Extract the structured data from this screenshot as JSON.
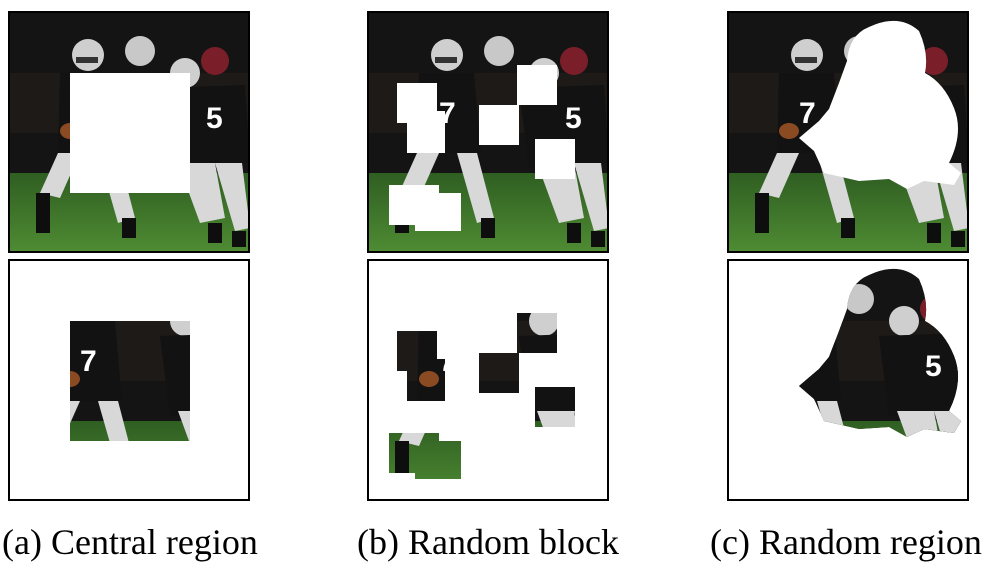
{
  "figure": {
    "panels": [
      {
        "letter": "(a)",
        "caption": "(a) Central region"
      },
      {
        "letter": "(b)",
        "caption": "(b) Random block"
      },
      {
        "letter": "(c)",
        "caption": "(c) Random region"
      }
    ],
    "colors": {
      "mask": "#ffffff",
      "jersey": "#121212",
      "grass": "#3f7a2a",
      "helmet": "#cfcfcf",
      "background": "#141414"
    }
  }
}
